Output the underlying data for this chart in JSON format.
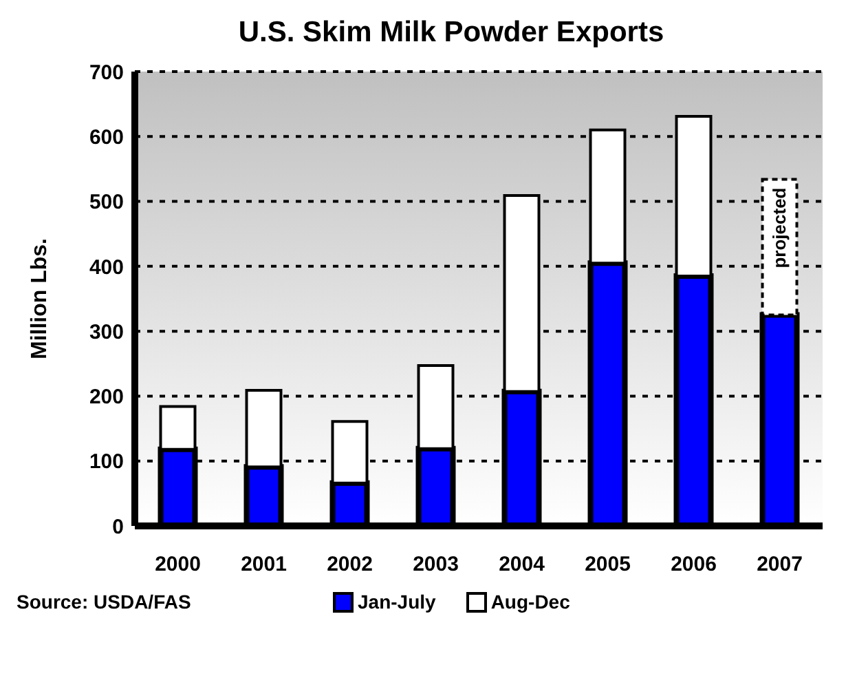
{
  "chart_data": {
    "type": "bar",
    "title": "U.S. Skim Milk Powder Exports",
    "ylabel": "Million Lbs.",
    "categories": [
      "2000",
      "2001",
      "2002",
      "2003",
      "2004",
      "2005",
      "2006",
      "2007"
    ],
    "stacked": true,
    "series": [
      {
        "name": "Jan-July",
        "color": "#0000ff",
        "values": [
          118,
          91,
          66,
          119,
          207,
          405,
          385,
          325
        ]
      },
      {
        "name": "Aug-Dec",
        "color": "#ffffff",
        "values": [
          66,
          118,
          95,
          128,
          302,
          205,
          246,
          null
        ]
      },
      {
        "color": "#ffffff",
        "line_style": "dashed",
        "values": [
          null,
          null,
          null,
          null,
          null,
          null,
          null,
          209
        ]
      }
    ],
    "ylim": [
      0,
      700
    ],
    "yticks": [
      0,
      100,
      200,
      300,
      400,
      500,
      600,
      700
    ],
    "grid": "y",
    "legend": "bottom",
    "annotations": [
      "Source: USDA/FAS",
      {
        "text": "projected",
        "x": "2007",
        "y": 534
      }
    ]
  }
}
